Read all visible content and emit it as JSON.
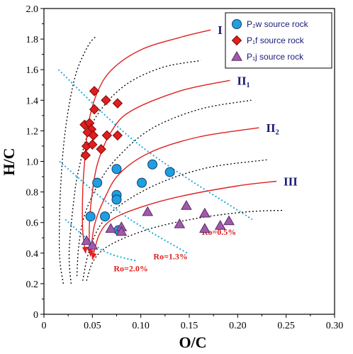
{
  "chart_data": {
    "type": "scatter",
    "xlabel": "O/C",
    "ylabel": "H/C",
    "xlim": [
      0,
      0.3
    ],
    "ylim": [
      0,
      2.0
    ],
    "x_ticks": [
      "0",
      "0.05",
      "0.10",
      "0.15",
      "0.20",
      "0.25",
      "0.30"
    ],
    "y_ticks": [
      "0",
      "0.2",
      "0.4",
      "0.6",
      "0.8",
      "1.0",
      "1.2",
      "1.4",
      "1.6",
      "1.8",
      "2.0"
    ],
    "legend": {
      "position": "top-right",
      "entries": [
        {
          "label": "P₂w source rock",
          "marker": "circle",
          "color": "#1e9fe0"
        },
        {
          "label": "P₁f source rock",
          "marker": "diamond",
          "color": "#e01e1e"
        },
        {
          "label": "P₁j source rock",
          "marker": "triangle",
          "color": "#a05aa8"
        }
      ]
    },
    "series": [
      {
        "name": "P₂w source rock",
        "marker": "circle",
        "color": "#1e9fe0",
        "points": [
          [
            0.055,
            0.86
          ],
          [
            0.075,
            0.95
          ],
          [
            0.075,
            0.78
          ],
          [
            0.075,
            0.75
          ],
          [
            0.048,
            0.64
          ],
          [
            0.063,
            0.64
          ],
          [
            0.077,
            0.55
          ],
          [
            0.101,
            0.86
          ],
          [
            0.112,
            0.98
          ],
          [
            0.13,
            0.93
          ]
        ]
      },
      {
        "name": "P₁f source rock",
        "marker": "diamond",
        "color": "#e01e1e",
        "points": [
          [
            0.052,
            1.46
          ],
          [
            0.064,
            1.4
          ],
          [
            0.076,
            1.38
          ],
          [
            0.052,
            1.34
          ],
          [
            0.042,
            1.24
          ],
          [
            0.047,
            1.25
          ],
          [
            0.049,
            1.21
          ],
          [
            0.045,
            1.19
          ],
          [
            0.051,
            1.17
          ],
          [
            0.065,
            1.17
          ],
          [
            0.076,
            1.17
          ],
          [
            0.044,
            1.1
          ],
          [
            0.05,
            1.11
          ],
          [
            0.059,
            1.08
          ],
          [
            0.043,
            1.04
          ]
        ]
      },
      {
        "name": "P₁j source rock",
        "marker": "triangle",
        "color": "#a05aa8",
        "points": [
          [
            0.044,
            0.48
          ],
          [
            0.05,
            0.45
          ],
          [
            0.069,
            0.56
          ],
          [
            0.08,
            0.57
          ],
          [
            0.08,
            0.54
          ],
          [
            0.107,
            0.67
          ],
          [
            0.14,
            0.59
          ],
          [
            0.147,
            0.71
          ],
          [
            0.166,
            0.66
          ],
          [
            0.166,
            0.56
          ],
          [
            0.182,
            0.58
          ],
          [
            0.191,
            0.61
          ]
        ]
      }
    ],
    "evolution_paths": {
      "color": "#e02020",
      "paths": [
        {
          "label": "I",
          "points": [
            [
              0.043,
              0.4
            ],
            [
              0.04,
              0.55
            ],
            [
              0.04,
              0.8
            ],
            [
              0.042,
              1.0
            ],
            [
              0.046,
              1.25
            ],
            [
              0.055,
              1.45
            ],
            [
              0.07,
              1.6
            ],
            [
              0.1,
              1.73
            ],
            [
              0.14,
              1.81
            ],
            [
              0.172,
              1.86
            ]
          ]
        },
        {
          "label": "II₁",
          "points": [
            [
              0.047,
              0.4
            ],
            [
              0.047,
              0.6
            ],
            [
              0.05,
              0.8
            ],
            [
              0.056,
              1.0
            ],
            [
              0.07,
              1.2
            ],
            [
              0.09,
              1.33
            ],
            [
              0.14,
              1.46
            ],
            [
              0.192,
              1.53
            ]
          ]
        },
        {
          "label": "II₂",
          "points": [
            [
              0.048,
              0.38
            ],
            [
              0.052,
              0.58
            ],
            [
              0.062,
              0.75
            ],
            [
              0.078,
              0.92
            ],
            [
              0.11,
              1.06
            ],
            [
              0.16,
              1.16
            ],
            [
              0.222,
              1.22
            ]
          ]
        },
        {
          "label": "III",
          "points": [
            [
              0.05,
              0.36
            ],
            [
              0.057,
              0.52
            ],
            [
              0.07,
              0.62
            ],
            [
              0.1,
              0.7
            ],
            [
              0.14,
              0.77
            ],
            [
              0.2,
              0.84
            ],
            [
              0.24,
              0.87
            ]
          ]
        }
      ]
    },
    "boundary_curves": {
      "color": "#000000",
      "style": "dotted",
      "curves": [
        [
          [
            0.02,
            0.2
          ],
          [
            0.016,
            0.4
          ],
          [
            0.017,
            0.8
          ],
          [
            0.022,
            1.2
          ],
          [
            0.032,
            1.55
          ],
          [
            0.045,
            1.75
          ],
          [
            0.054,
            1.82
          ]
        ],
        [
          [
            0.028,
            0.2
          ],
          [
            0.026,
            0.4
          ],
          [
            0.03,
            0.7
          ],
          [
            0.036,
            0.95
          ],
          [
            0.05,
            1.25
          ],
          [
            0.08,
            1.48
          ],
          [
            0.12,
            1.61
          ],
          [
            0.162,
            1.66
          ]
        ],
        [
          [
            0.034,
            0.25
          ],
          [
            0.036,
            0.45
          ],
          [
            0.042,
            0.65
          ],
          [
            0.056,
            0.85
          ],
          [
            0.075,
            1.02
          ],
          [
            0.11,
            1.21
          ],
          [
            0.16,
            1.34
          ],
          [
            0.214,
            1.4
          ]
        ],
        [
          [
            0.04,
            0.22
          ],
          [
            0.046,
            0.4
          ],
          [
            0.058,
            0.58
          ],
          [
            0.08,
            0.72
          ],
          [
            0.12,
            0.86
          ],
          [
            0.17,
            0.96
          ],
          [
            0.23,
            1.01
          ]
        ],
        [
          [
            0.044,
            0.22
          ],
          [
            0.052,
            0.36
          ],
          [
            0.07,
            0.46
          ],
          [
            0.11,
            0.56
          ],
          [
            0.16,
            0.63
          ],
          [
            0.21,
            0.67
          ],
          [
            0.248,
            0.68
          ]
        ]
      ]
    },
    "maturity_lines": {
      "color": "#22aadd",
      "style": "dotted",
      "lines": [
        {
          "label": "Ro=0.5%",
          "points": [
            [
              0.015,
              1.6
            ],
            [
              0.1,
              1.1
            ],
            [
              0.215,
              0.62
            ]
          ],
          "label_at": [
            0.163,
            0.52
          ]
        },
        {
          "label": "Ro=1.3%",
          "points": [
            [
              0.016,
              1.0
            ],
            [
              0.08,
              0.66
            ],
            [
              0.148,
              0.4
            ]
          ],
          "label_at": [
            0.113,
            0.36
          ]
        },
        {
          "label": "Ro=2.0%",
          "points": [
            [
              0.022,
              0.62
            ],
            [
              0.06,
              0.42
            ],
            [
              0.095,
              0.35
            ]
          ],
          "label_at": [
            0.072,
            0.28
          ]
        }
      ]
    }
  }
}
